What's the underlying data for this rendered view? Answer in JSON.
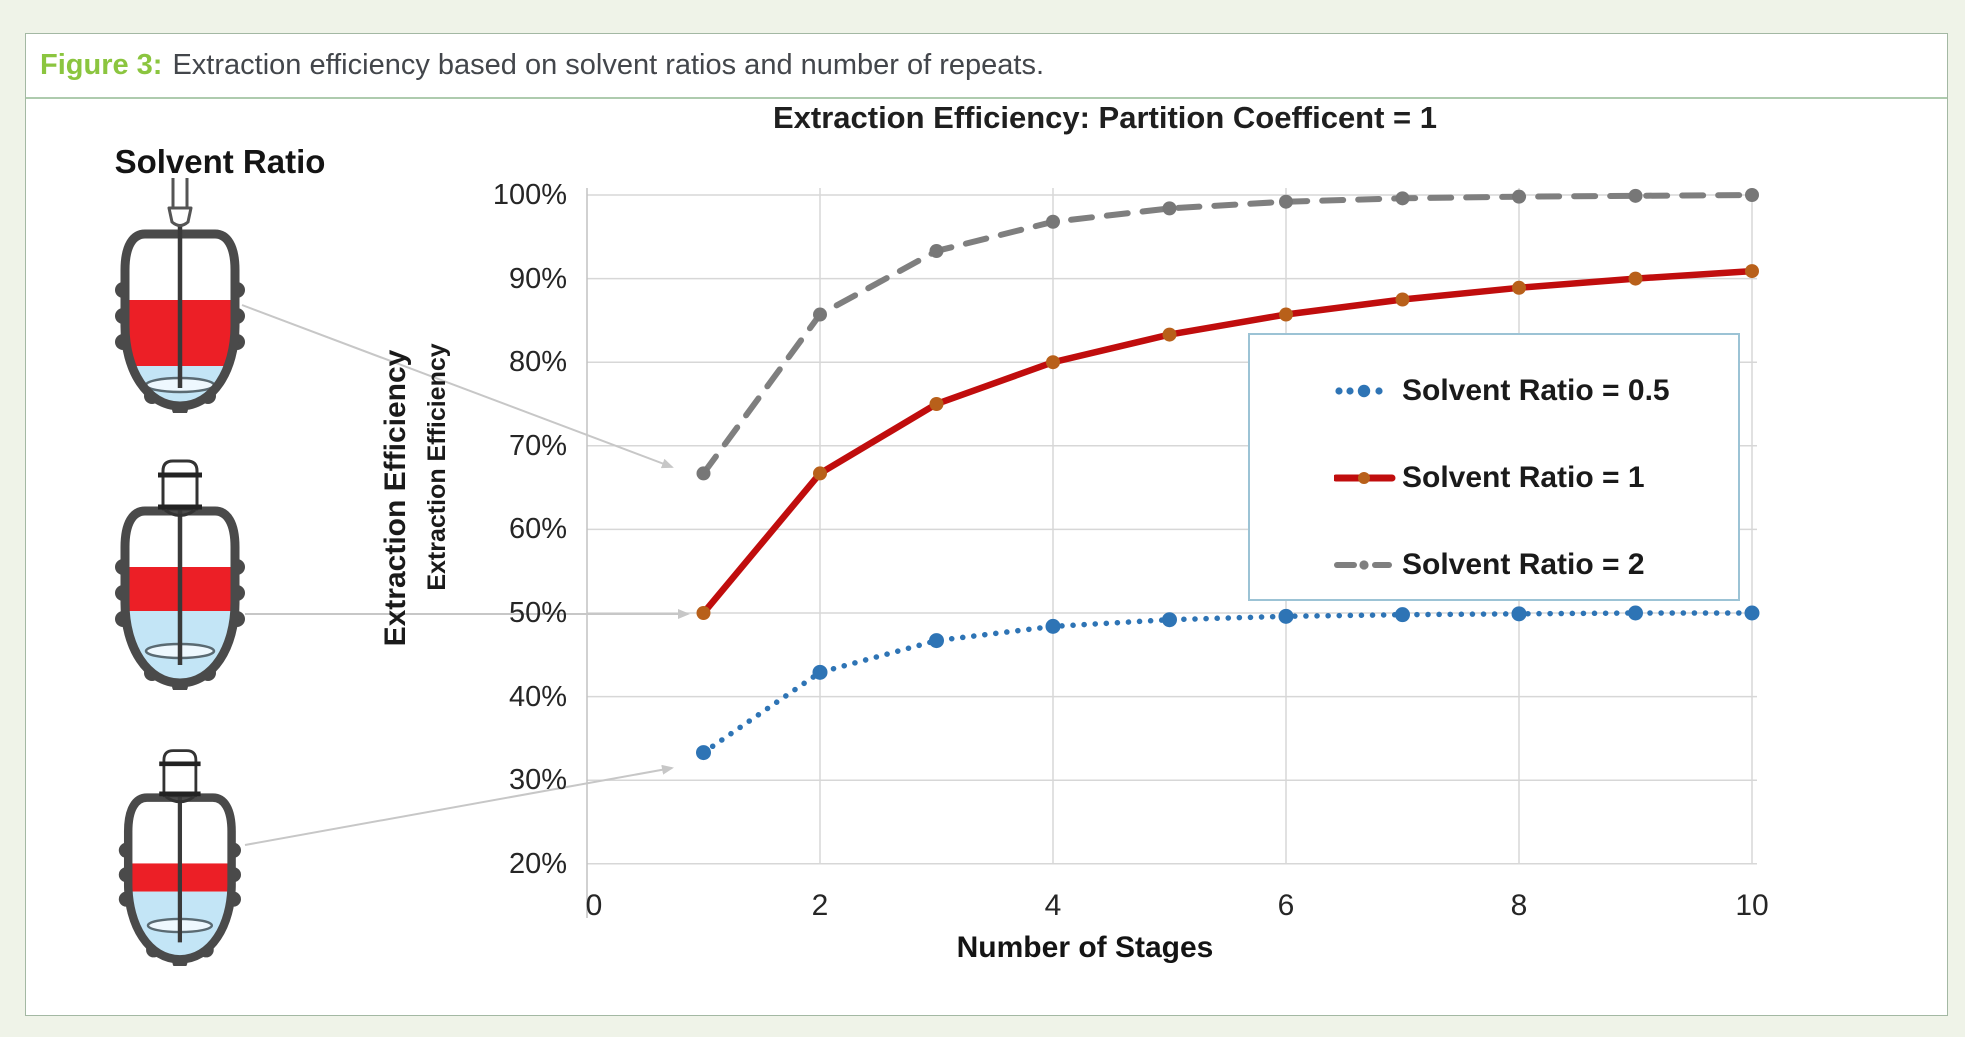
{
  "caption": {
    "label": "Figure 3:",
    "text": "Extraction efficiency based on solvent ratios and number of repeats."
  },
  "vessel_panel": {
    "heading": "Solvent Ratio",
    "vessels": [
      {
        "name": "vessel-solvent-ratio-2",
        "solvent_ratio": 2
      },
      {
        "name": "vessel-solvent-ratio-1",
        "solvent_ratio": 1
      },
      {
        "name": "vessel-solvent-ratio-0.5",
        "solvent_ratio": 0.5
      }
    ],
    "liquid_red": "#ec1f26",
    "liquid_blue": "#c3e5f6"
  },
  "chart_data": {
    "type": "line",
    "title": "Extraction Efficiency: Partition Coefficent = 1",
    "xlabel": "Number of Stages",
    "ylabel": "Extraction Efficiency",
    "ylabel_secondary": "Extraction Efficiency",
    "xlim": [
      0,
      10
    ],
    "ylim": [
      20,
      100
    ],
    "grid": true,
    "legend_position": "middle-right",
    "x_ticks": [
      0,
      2,
      4,
      6,
      8,
      10
    ],
    "y_tick_values": [
      100,
      90,
      80,
      70,
      60,
      50,
      40,
      30,
      20
    ],
    "y_tick_labels": [
      "100%",
      "90%",
      "80%",
      "70%",
      "60%",
      "50%",
      "40%",
      "30%",
      "20%"
    ],
    "x": [
      1,
      2,
      3,
      4,
      5,
      6,
      7,
      8,
      9,
      10
    ],
    "series": [
      {
        "name": "Solvent Ratio = 0.5",
        "style": "dotted",
        "color": "#2e74b5",
        "marker_color": "#2e74b5",
        "values": [
          33.3,
          42.9,
          46.7,
          48.4,
          49.2,
          49.6,
          49.8,
          49.9,
          50.0,
          50.0
        ]
      },
      {
        "name": "Solvent Ratio = 1",
        "style": "solid",
        "color": "#c00d0d",
        "marker_color": "#b8601a",
        "values": [
          50.0,
          66.7,
          75.0,
          80.0,
          83.3,
          85.7,
          87.5,
          88.9,
          90.0,
          90.9
        ]
      },
      {
        "name": "Solvent Ratio = 2",
        "style": "dashed",
        "color": "#7f7f7f",
        "marker_color": "#777777",
        "values": [
          66.7,
          85.7,
          93.3,
          96.8,
          98.4,
          99.2,
          99.6,
          99.8,
          99.9,
          100.0
        ]
      }
    ],
    "grid_color": "#d7d7d7",
    "arrow_color": "#c7c7c7"
  }
}
